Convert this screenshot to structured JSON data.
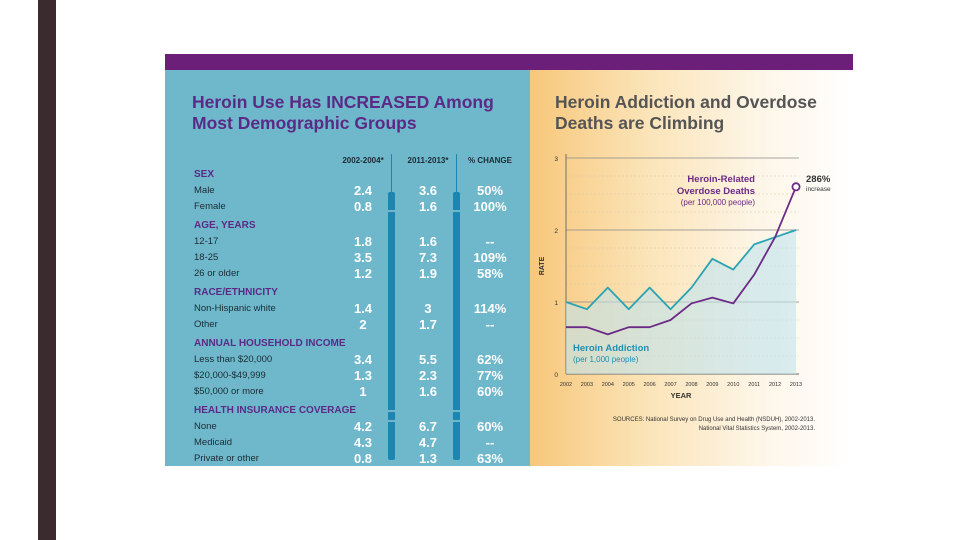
{
  "colors": {
    "purple": "#6b1f79",
    "teal_panel": "#6fb8cc",
    "title_purple": "#5b2a86",
    "bar_blue": "#1c86b0",
    "addiction_line": "#2aa3b3",
    "overdose_line": "#6b2a86"
  },
  "left": {
    "title_line1": "Heroin Use Has INCREASED Among",
    "title_line2": "Most Demographic Groups",
    "columns": [
      "2002-2004*",
      "2011-2013*",
      "% CHANGE"
    ],
    "sections": [
      {
        "heading": "SEX",
        "rows": [
          {
            "label": "Male",
            "v1": "2.4",
            "v2": "3.6",
            "change": "50%"
          },
          {
            "label": "Female",
            "v1": "0.8",
            "v2": "1.6",
            "change": "100%"
          }
        ]
      },
      {
        "heading": "AGE, YEARS",
        "rows": [
          {
            "label": "12-17",
            "v1": "1.8",
            "v2": "1.6",
            "change": "--"
          },
          {
            "label": "18-25",
            "v1": "3.5",
            "v2": "7.3",
            "change": "109%"
          },
          {
            "label": "26 or older",
            "v1": "1.2",
            "v2": "1.9",
            "change": "58%"
          }
        ]
      },
      {
        "heading": "RACE/ETHNICITY",
        "rows": [
          {
            "label": "Non-Hispanic white",
            "v1": "1.4",
            "v2": "3",
            "change": "114%"
          },
          {
            "label": "Other",
            "v1": "2",
            "v2": "1.7",
            "change": "--"
          }
        ]
      },
      {
        "heading": "ANNUAL HOUSEHOLD INCOME",
        "rows": [
          {
            "label": "Less than $20,000",
            "v1": "3.4",
            "v2": "5.5",
            "change": "62%"
          },
          {
            "label": "$20,000-$49,999",
            "v1": "1.3",
            "v2": "2.3",
            "change": "77%"
          },
          {
            "label": "$50,000 or more",
            "v1": "1",
            "v2": "1.6",
            "change": "60%"
          }
        ]
      },
      {
        "heading": "HEALTH INSURANCE COVERAGE",
        "rows": [
          {
            "label": "None",
            "v1": "4.2",
            "v2": "6.7",
            "change": "60%"
          },
          {
            "label": "Medicaid",
            "v1": "4.3",
            "v2": "4.7",
            "change": "--"
          },
          {
            "label": "Private or other",
            "v1": "0.8",
            "v2": "1.3",
            "change": "63%"
          }
        ]
      }
    ]
  },
  "chart_data": {
    "type": "line",
    "title_line1": "Heroin Addiction and Overdose",
    "title_line2": "Deaths are Climbing",
    "xlabel": "YEAR",
    "ylabel": "RATE",
    "x": [
      2002,
      2003,
      2004,
      2005,
      2006,
      2007,
      2008,
      2009,
      2010,
      2011,
      2012,
      2013
    ],
    "x_tick_labels": [
      "2002",
      "2003",
      "2004",
      "2005",
      "2006",
      "2007",
      "2008",
      "2009",
      "2010",
      "2011",
      "2012",
      "2013"
    ],
    "ylim": [
      0,
      3
    ],
    "y_ticks": [
      0,
      1,
      2,
      3
    ],
    "y_tick_labels": [
      "0",
      "1",
      "2",
      "3"
    ],
    "series": [
      {
        "name": "Heroin Addiction",
        "subtitle": "(per 1,000 people)",
        "values": [
          1.0,
          0.9,
          1.2,
          0.9,
          1.2,
          0.9,
          1.2,
          1.6,
          1.45,
          1.8,
          1.9,
          2.0
        ]
      },
      {
        "name": "Heroin-Related Overdose Deaths",
        "name_line1": "Heroin-Related",
        "name_line2": "Overdose Deaths",
        "subtitle": "(per 100,000 people)",
        "values": [
          0.65,
          0.65,
          0.55,
          0.65,
          0.65,
          0.75,
          0.98,
          1.06,
          0.98,
          1.38,
          1.9,
          2.6
        ]
      }
    ],
    "annotation": {
      "value": "286%",
      "text": "increase"
    },
    "sources_line1": "SOURCES: National Survey on Drug Use and Health (NSDUH), 2002-2013.",
    "sources_line2": "National Vital Statistics System, 2002-2013."
  }
}
